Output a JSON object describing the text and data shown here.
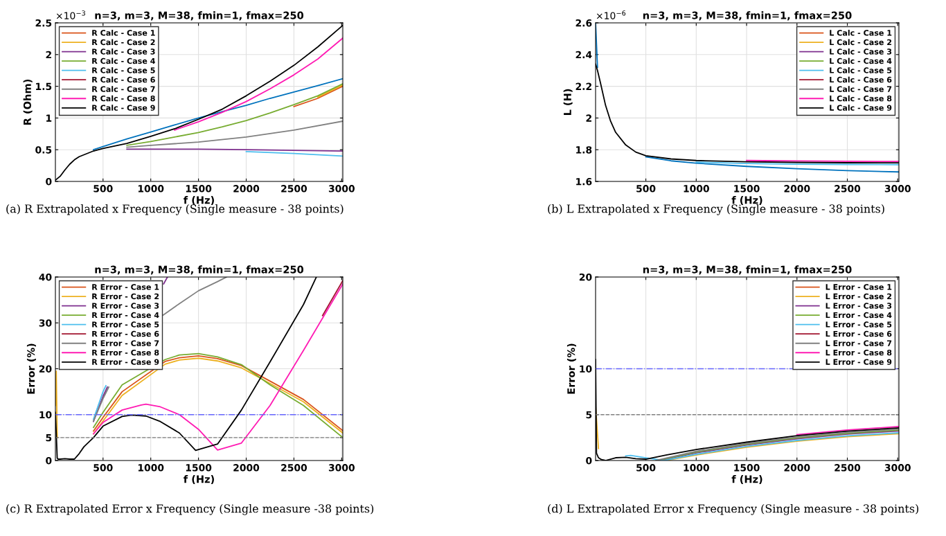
{
  "chart_data": [
    {
      "type": "line",
      "title": "n=3, m=3, M=38, fmin=1, fmax=250",
      "xlabel": "f (Hz)",
      "ylabel": "R (Ohm)",
      "xlim": [
        1,
        3012
      ],
      "xticks": [
        500,
        1000,
        1500,
        2000,
        2500,
        3000
      ],
      "ylim": [
        0,
        2.5
      ],
      "yticks": [
        0,
        0.5,
        1,
        1.5,
        2,
        2.5
      ],
      "grid": true,
      "legend": "top left",
      "annotations": [
        "×10$^{−3}$",
        "(a) R Extrapolated x Frequency (Single measure - 38 points)"
      ],
      "series": [
        {
          "color": "#0072bd",
          "x": [
            400,
            500,
            750,
            1000,
            1250,
            1500,
            1750,
            2000,
            2250,
            2500,
            2750,
            3012
          ],
          "values": [
            0.5,
            0.55,
            0.67,
            0.78,
            0.89,
            1.0,
            1.1,
            1.2,
            1.31,
            1.41,
            1.51,
            1.62
          ]
        },
        {
          "name": "R Calc - Case 1",
          "color": "#d95319",
          "x": [
            2500,
            2750,
            3012
          ],
          "values": [
            1.18,
            1.31,
            1.5
          ]
        },
        {
          "name": "R Calc - Case 2",
          "color": "#edb120",
          "x": [
            2750,
            3012
          ],
          "values": [
            1.33,
            1.52
          ]
        },
        {
          "name": "R Calc - Case 3",
          "color": "#7e2f8e",
          "x": [
            750,
            1000,
            1500,
            2000,
            2500,
            3012
          ],
          "values": [
            0.51,
            0.51,
            0.51,
            0.5,
            0.49,
            0.48
          ]
        },
        {
          "name": "R Calc - Case 4",
          "color": "#77ac30",
          "x": [
            750,
            1000,
            1250,
            1500,
            1750,
            2000,
            2250,
            2500,
            2750,
            3012
          ],
          "values": [
            0.57,
            0.63,
            0.7,
            0.77,
            0.86,
            0.96,
            1.08,
            1.21,
            1.35,
            1.54
          ]
        },
        {
          "name": "R Calc - Case 5",
          "color": "#4dbeee",
          "x": [
            2000,
            2500,
            3012
          ],
          "values": [
            0.47,
            0.44,
            0.4
          ]
        },
        {
          "name": "R Calc - Case 6",
          "color": "#a2142f"
        },
        {
          "name": "R Calc - Case 7",
          "color": "#808080",
          "x": [
            750,
            1000,
            1500,
            2000,
            2500,
            3012
          ],
          "values": [
            0.54,
            0.57,
            0.62,
            0.7,
            0.81,
            0.95
          ]
        },
        {
          "name": "R Calc - Case 8",
          "color": "#ff1ab3",
          "x": [
            1250,
            1500,
            1750,
            2000,
            2250,
            2500,
            2750,
            3012
          ],
          "values": [
            0.81,
            0.94,
            1.09,
            1.26,
            1.46,
            1.68,
            1.93,
            2.26
          ]
        },
        {
          "name": "R Calc - Case 9",
          "color": "#000000",
          "x": [
            1,
            50,
            100,
            150,
            200,
            250,
            300,
            400,
            500,
            750,
            1000,
            1250,
            1500,
            1750,
            2000,
            2250,
            2500,
            2750,
            3012
          ],
          "values": [
            0.02,
            0.08,
            0.18,
            0.27,
            0.34,
            0.39,
            0.42,
            0.48,
            0.52,
            0.6,
            0.71,
            0.83,
            0.98,
            1.14,
            1.35,
            1.58,
            1.83,
            2.12,
            2.46
          ]
        }
      ]
    },
    {
      "type": "line",
      "title": "n=3, m=3, M=38, fmin=1, fmax=250",
      "xlabel": "f (Hz)",
      "ylabel": "L (H)",
      "xlim": [
        1,
        3012
      ],
      "xticks": [
        500,
        1000,
        1500,
        2000,
        2500,
        3000
      ],
      "ylim": [
        1.6,
        2.6
      ],
      "yticks": [
        1.6,
        1.8,
        2,
        2.2,
        2.4,
        2.6
      ],
      "grid": true,
      "legend": "top right",
      "annotations": [
        "×10$^{−6}$",
        "(b) L Extrapolated x Frequency (Single measure - 38 points)"
      ],
      "series": [
        {
          "color": "#0072bd",
          "x": [
            1,
            20,
            30,
            500,
            750,
            1000,
            1500,
            2000,
            2500,
            3012
          ],
          "values": [
            2.6,
            2.32,
            null,
            1.755,
            1.73,
            1.715,
            1.695,
            1.68,
            1.668,
            1.66
          ]
        },
        {
          "name": "L Calc - Case 1",
          "color": "#d95319"
        },
        {
          "name": "L Calc - Case 2",
          "color": "#edb120"
        },
        {
          "name": "L Calc - Case 3",
          "color": "#7e2f8e"
        },
        {
          "name": "L Calc - Case 4",
          "color": "#77ac30"
        },
        {
          "name": "L Calc - Case 5",
          "color": "#4dbeee",
          "x": [
            1000,
            1500,
            2000,
            2500,
            3012
          ],
          "values": [
            1.722,
            1.713,
            1.709,
            1.707,
            1.706
          ]
        },
        {
          "name": "L Calc - Case 6",
          "color": "#a2142f"
        },
        {
          "name": "L Calc - Case 7",
          "color": "#808080"
        },
        {
          "name": "L Calc - Case 8",
          "color": "#ff1ab3",
          "x": [
            1500,
            2000,
            2500,
            3012
          ],
          "values": [
            1.732,
            1.729,
            1.727,
            1.726
          ]
        },
        {
          "name": "L Calc - Case 9",
          "color": "#000000",
          "x": [
            1,
            20,
            50,
            100,
            150,
            200,
            300,
            400,
            500,
            750,
            1000,
            1500,
            2000,
            2500,
            3012
          ],
          "values": [
            2.34,
            2.3,
            2.22,
            2.08,
            1.98,
            1.91,
            1.83,
            1.785,
            1.762,
            1.742,
            1.732,
            1.724,
            1.72,
            1.718,
            1.717
          ]
        }
      ]
    },
    {
      "type": "line",
      "title": "n=3, m=3, M=38, fmin=1, fmax=250",
      "xlabel": "f (Hz)",
      "ylabel": "Error (%)",
      "xlim": [
        1,
        3012
      ],
      "xticks": [
        500,
        1000,
        1500,
        2000,
        2500,
        3000
      ],
      "ylim": [
        0,
        40
      ],
      "yticks": [
        0,
        5,
        10,
        20,
        30,
        40
      ],
      "grid": true,
      "legend": "top left",
      "ref_lines": [
        {
          "axis": "y",
          "value": 10,
          "color": "#6666ff",
          "line_style": "dashdot"
        },
        {
          "axis": "y",
          "value": 5,
          "color": "#808080",
          "line_style": "dashed"
        }
      ],
      "annotations": [
        "(c) R Extrapolated Error x Frequency (Single measure -38 points)"
      ],
      "series": [
        {
          "name": "R Error - Case 1",
          "color": "#d95319",
          "x": [
            400,
            500,
            700,
            1150,
            1300,
            1500,
            1700,
            1950,
            2250,
            2600,
            3012
          ],
          "values": [
            6.4,
            9.4,
            15,
            21.6,
            22.4,
            22.8,
            22.2,
            20.7,
            17.3,
            13.3,
            6.5
          ]
        },
        {
          "name": "R Error - Case 2",
          "color": "#edb120",
          "x": [
            1,
            10,
            20,
            30,
            400,
            500,
            700,
            1150,
            1300,
            1500,
            1700,
            1950,
            2250,
            2600,
            3012
          ],
          "values": [
            12,
            19.5,
            5,
            null,
            5.8,
            8.6,
            14.2,
            21,
            21.9,
            22.3,
            21.7,
            20.2,
            16.8,
            12.8,
            6
          ]
        },
        {
          "name": "R Error - Case 3",
          "color": "#7e2f8e",
          "x": [
            400,
            500,
            545,
            600,
            1135,
            1175
          ],
          "values": [
            8.5,
            14,
            16,
            null,
            38.5,
            40
          ]
        },
        {
          "name": "R Error - Case 4",
          "color": "#77ac30",
          "x": [
            400,
            500,
            700,
            1150,
            1300,
            1500,
            1700,
            1950,
            2250,
            2600,
            3012
          ],
          "values": [
            7.2,
            10.5,
            16.5,
            22,
            23,
            23.3,
            22.6,
            20.9,
            16.5,
            12,
            5
          ]
        },
        {
          "name": "R Error - Case 5",
          "color": "#4dbeee",
          "x": [
            400,
            500,
            530
          ],
          "values": [
            9,
            15,
            16.3
          ]
        },
        {
          "name": "R Error - Case 6",
          "color": "#a2142f",
          "x": [
            2800,
            3012
          ],
          "values": [
            31.6,
            39.2
          ]
        },
        {
          "name": "R Error - Case 7",
          "color": "#808080",
          "x": [
            400,
            500,
            560,
            600,
            1130,
            1300,
            1500,
            1700,
            1793
          ],
          "values": [
            8.6,
            13.5,
            16,
            null,
            31.7,
            34.2,
            37,
            39,
            40
          ]
        },
        {
          "name": "R Error - Case 8",
          "color": "#ff1ab3",
          "x": [
            400,
            500,
            700,
            900,
            950,
            1100,
            1300,
            1500,
            1700,
            1950,
            2250,
            2600,
            3012
          ],
          "values": [
            5.8,
            8.3,
            11,
            12.1,
            12.3,
            11.7,
            10,
            6.8,
            2.3,
            3.8,
            12,
            24,
            38.5
          ]
        },
        {
          "name": "R Error - Case 9",
          "color": "#000000",
          "x": [
            1,
            10,
            20,
            30,
            50,
            100,
            150,
            200,
            250,
            300,
            400,
            500,
            700,
            800,
            950,
            1100,
            1300,
            1470,
            1700,
            1950,
            2250,
            2600,
            2735
          ],
          "values": [
            10.5,
            6,
            0.5,
            0.3,
            0.3,
            0.4,
            0.3,
            0.3,
            1.5,
            3,
            5,
            7.5,
            9.6,
            9.9,
            9.7,
            8.5,
            6,
            2.2,
            3.6,
            11,
            21.5,
            34,
            40
          ]
        }
      ]
    },
    {
      "type": "line",
      "title": "n=3, m=3, M=38, fmin=1, fmax=250",
      "xlabel": "f (Hz)",
      "ylabel": "Error (%)",
      "xlim": [
        1,
        3012
      ],
      "xticks": [
        500,
        1000,
        1500,
        2000,
        2500,
        3000
      ],
      "ylim": [
        0,
        20
      ],
      "yticks": [
        0,
        5,
        10,
        20
      ],
      "grid": true,
      "legend": "top right",
      "ref_lines": [
        {
          "axis": "y",
          "value": 10,
          "color": "#6666ff",
          "line_style": "dashdot"
        },
        {
          "axis": "y",
          "value": 5,
          "color": "#808080",
          "line_style": "dashed"
        }
      ],
      "annotations": [
        "(d) L Extrapolated Error x Frequency (Single measure - 38 points)"
      ],
      "series": [
        {
          "name": "L Error - Case 1",
          "color": "#d95319"
        },
        {
          "name": "L Error - Case 2",
          "color": "#edb120",
          "x": [
            1,
            30,
            40,
            700,
            1000,
            1500,
            2000,
            2500,
            3012
          ],
          "values": [
            6,
            1.3,
            null,
            0,
            0.6,
            1.45,
            2.1,
            2.6,
            2.92
          ]
        },
        {
          "name": "L Error - Case 3",
          "color": "#7e2f8e",
          "x": [
            640,
            1000,
            1500,
            2000,
            2500,
            3012
          ],
          "values": [
            0,
            0.84,
            1.69,
            2.37,
            2.87,
            3.22
          ]
        },
        {
          "name": "L Error - Case 4",
          "color": "#77ac30",
          "x": [
            620,
            1000,
            1500,
            2000,
            2500,
            3012
          ],
          "values": [
            0,
            0.92,
            1.77,
            2.46,
            2.96,
            3.32
          ]
        },
        {
          "name": "L Error - Case 5",
          "color": "#4dbeee",
          "x": [
            300,
            350,
            500,
            680,
            1000,
            1500,
            2000,
            2500,
            3012
          ],
          "values": [
            0.5,
            0.55,
            0.3,
            0,
            0.68,
            1.53,
            2.19,
            2.69,
            3.02
          ]
        },
        {
          "name": "L Error - Case 6",
          "color": "#a2142f"
        },
        {
          "name": "L Error - Case 7",
          "color": "#808080",
          "x": [
            600,
            1000,
            1500,
            2000,
            2500,
            3012
          ],
          "values": [
            0,
            1.0,
            1.85,
            2.55,
            3.05,
            3.42
          ]
        },
        {
          "name": "L Error - Case 8",
          "color": "#ff1ab3",
          "x": [
            2000,
            2500,
            3012
          ],
          "values": [
            2.82,
            3.33,
            3.7
          ]
        },
        {
          "name": "L Error - Case 9",
          "color": "#000000",
          "x": [
            1,
            10,
            30,
            60,
            100,
            200,
            300,
            400,
            500,
            700,
            1000,
            1500,
            2000,
            2500,
            3012
          ],
          "values": [
            11,
            0.8,
            0.3,
            0.1,
            0,
            0.3,
            0.35,
            0.2,
            0.15,
            0.6,
            1.2,
            2.0,
            2.7,
            3.2,
            3.55
          ]
        }
      ]
    }
  ]
}
